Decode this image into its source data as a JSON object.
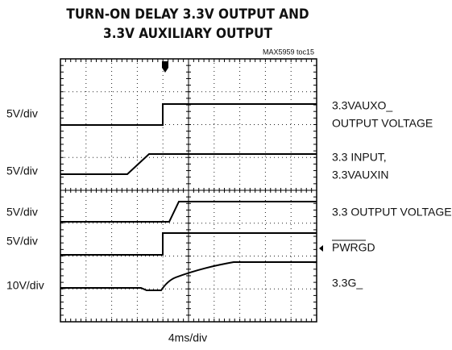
{
  "title": [
    "TURN-ON DELAY 3.3V OUTPUT AND",
    "3.3V AUXILIARY OUTPUT"
  ],
  "code": "MAX5959 toc15",
  "scales": [
    "5V/div",
    "5V/div",
    "5V/div",
    "5V/div",
    "10V/div"
  ],
  "channels": [
    [
      "3.3VAUXO_",
      "OUTPUT VOLTAGE"
    ],
    [
      "3.3 INPUT,",
      "3.3VAUXIN"
    ],
    [
      "3.3 OUTPUT VOLTAGE"
    ],
    [
      "PWRGD"
    ],
    [
      "3.3G_"
    ]
  ],
  "timebase": "4ms/div"
}
